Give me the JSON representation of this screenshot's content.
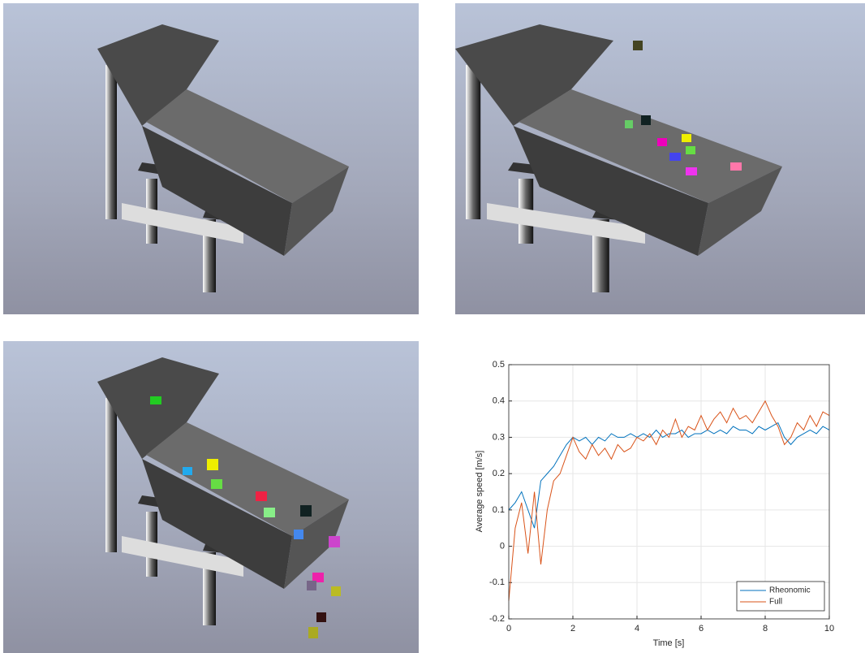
{
  "chart_data": {
    "type": "line",
    "xlabel": "Time [s]",
    "ylabel": "Average speed [m/s]",
    "x": [
      0,
      0.2,
      0.4,
      0.6,
      0.8,
      1,
      1.2,
      1.4,
      1.6,
      1.8,
      2,
      2.2,
      2.4,
      2.6,
      2.8,
      3,
      3.2,
      3.4,
      3.6,
      3.8,
      4,
      4.2,
      4.4,
      4.6,
      4.8,
      5,
      5.2,
      5.4,
      5.6,
      5.8,
      6,
      6.2,
      6.4,
      6.6,
      6.8,
      7,
      7.2,
      7.4,
      7.6,
      7.8,
      8,
      8.2,
      8.4,
      8.6,
      8.8,
      9,
      9.2,
      9.4,
      9.6,
      9.8,
      10
    ],
    "series": [
      {
        "name": "Rheonomic",
        "color": "#0072bd",
        "values": [
          0.1,
          0.12,
          0.15,
          0.1,
          0.05,
          0.18,
          0.2,
          0.22,
          0.25,
          0.28,
          0.3,
          0.29,
          0.3,
          0.28,
          0.3,
          0.29,
          0.31,
          0.3,
          0.3,
          0.31,
          0.3,
          0.31,
          0.3,
          0.32,
          0.3,
          0.31,
          0.31,
          0.32,
          0.3,
          0.31,
          0.31,
          0.32,
          0.31,
          0.32,
          0.31,
          0.33,
          0.32,
          0.32,
          0.31,
          0.33,
          0.32,
          0.33,
          0.34,
          0.3,
          0.28,
          0.3,
          0.31,
          0.32,
          0.31,
          0.33,
          0.32
        ]
      },
      {
        "name": "Full",
        "color": "#d95319",
        "values": [
          -0.15,
          0.05,
          0.12,
          -0.02,
          0.15,
          -0.05,
          0.1,
          0.18,
          0.2,
          0.25,
          0.3,
          0.26,
          0.24,
          0.28,
          0.25,
          0.27,
          0.24,
          0.28,
          0.26,
          0.27,
          0.3,
          0.29,
          0.31,
          0.28,
          0.32,
          0.3,
          0.35,
          0.3,
          0.33,
          0.32,
          0.36,
          0.32,
          0.35,
          0.37,
          0.34,
          0.38,
          0.35,
          0.36,
          0.34,
          0.37,
          0.4,
          0.36,
          0.33,
          0.28,
          0.3,
          0.34,
          0.32,
          0.36,
          0.33,
          0.37,
          0.36
        ]
      }
    ],
    "xlim": [
      0,
      10
    ],
    "ylim": [
      -0.2,
      0.5
    ],
    "xticks": [
      0,
      2,
      4,
      6,
      8,
      10
    ],
    "yticks": [
      -0.2,
      -0.1,
      0,
      0.1,
      0.2,
      0.3,
      0.4,
      0.5
    ],
    "grid": true,
    "legend": "lower right"
  }
}
